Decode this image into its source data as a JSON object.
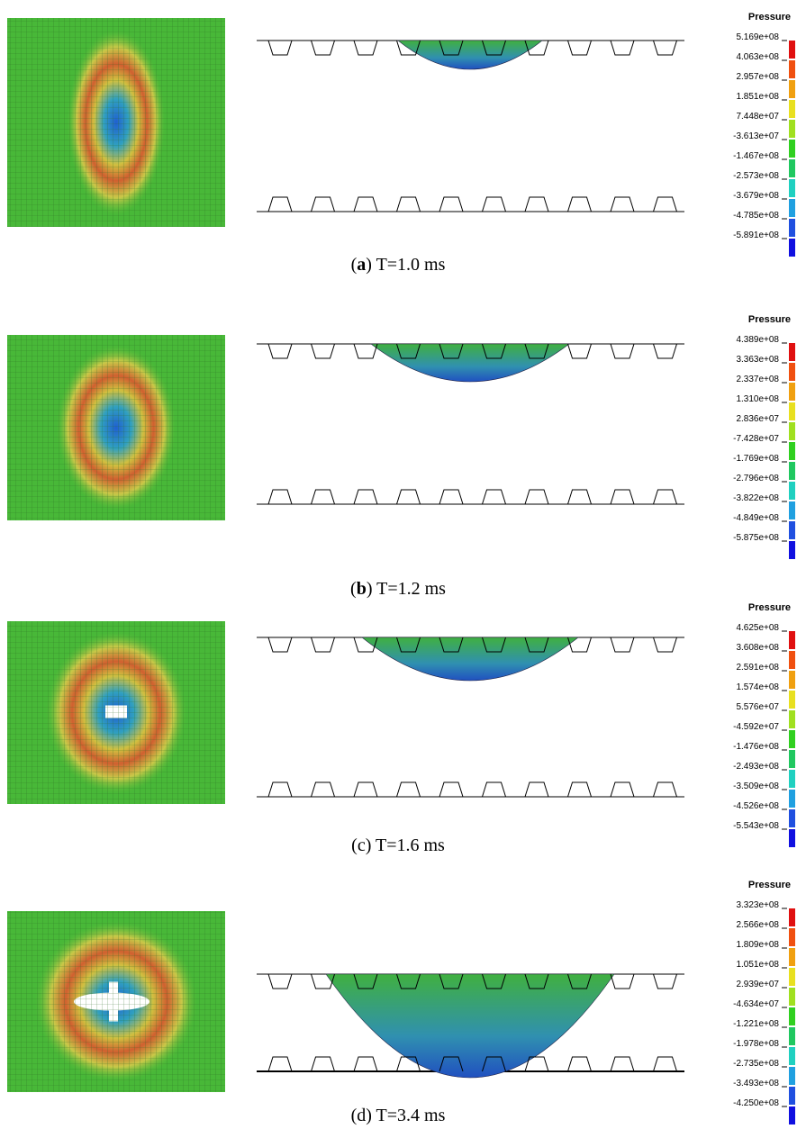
{
  "panels": [
    {
      "legend_title": "Pressure",
      "legend_labels": [
        "5.169e+08",
        "4.063e+08",
        "2.957e+08",
        "1.851e+08",
        "7.448e+07",
        "-3.613e+07",
        "-1.467e+08",
        "-2.573e+08",
        "-3.679e+08",
        "-4.785e+08",
        "-5.891e+08"
      ],
      "caption": [
        {
          "text": "("
        },
        {
          "text": "a",
          "bold": true
        },
        {
          "text": ") T=1.0 ms"
        }
      ]
    },
    {
      "legend_title": "Pressure",
      "legend_labels": [
        "4.389e+08",
        "3.363e+08",
        "2.337e+08",
        "1.310e+08",
        "2.836e+07",
        "-7.428e+07",
        "-1.769e+08",
        "-2.796e+08",
        "-3.822e+08",
        "-4.849e+08",
        "-5.875e+08"
      ],
      "caption": [
        {
          "text": "("
        },
        {
          "text": "b",
          "bold": true
        },
        {
          "text": ") T=1.2 ms"
        }
      ]
    },
    {
      "legend_title": "Pressure",
      "legend_labels": [
        "4.625e+08",
        "3.608e+08",
        "2.591e+08",
        "1.574e+08",
        "5.576e+07",
        "-4.592e+07",
        "-1.476e+08",
        "-2.493e+08",
        "-3.509e+08",
        "-4.526e+08",
        "-5.543e+08"
      ],
      "caption": [
        {
          "text": "(c) T=1.6 ms"
        }
      ]
    },
    {
      "legend_title": "Pressure",
      "legend_labels": [
        "3.323e+08",
        "2.566e+08",
        "1.809e+08",
        "1.051e+08",
        "2.939e+07",
        "-4.634e+07",
        "-1.221e+08",
        "-1.978e+08",
        "-2.735e+08",
        "-3.493e+08",
        "-4.250e+08"
      ],
      "caption": [
        {
          "text": "(d) T=3.4 ms"
        }
      ]
    }
  ]
}
